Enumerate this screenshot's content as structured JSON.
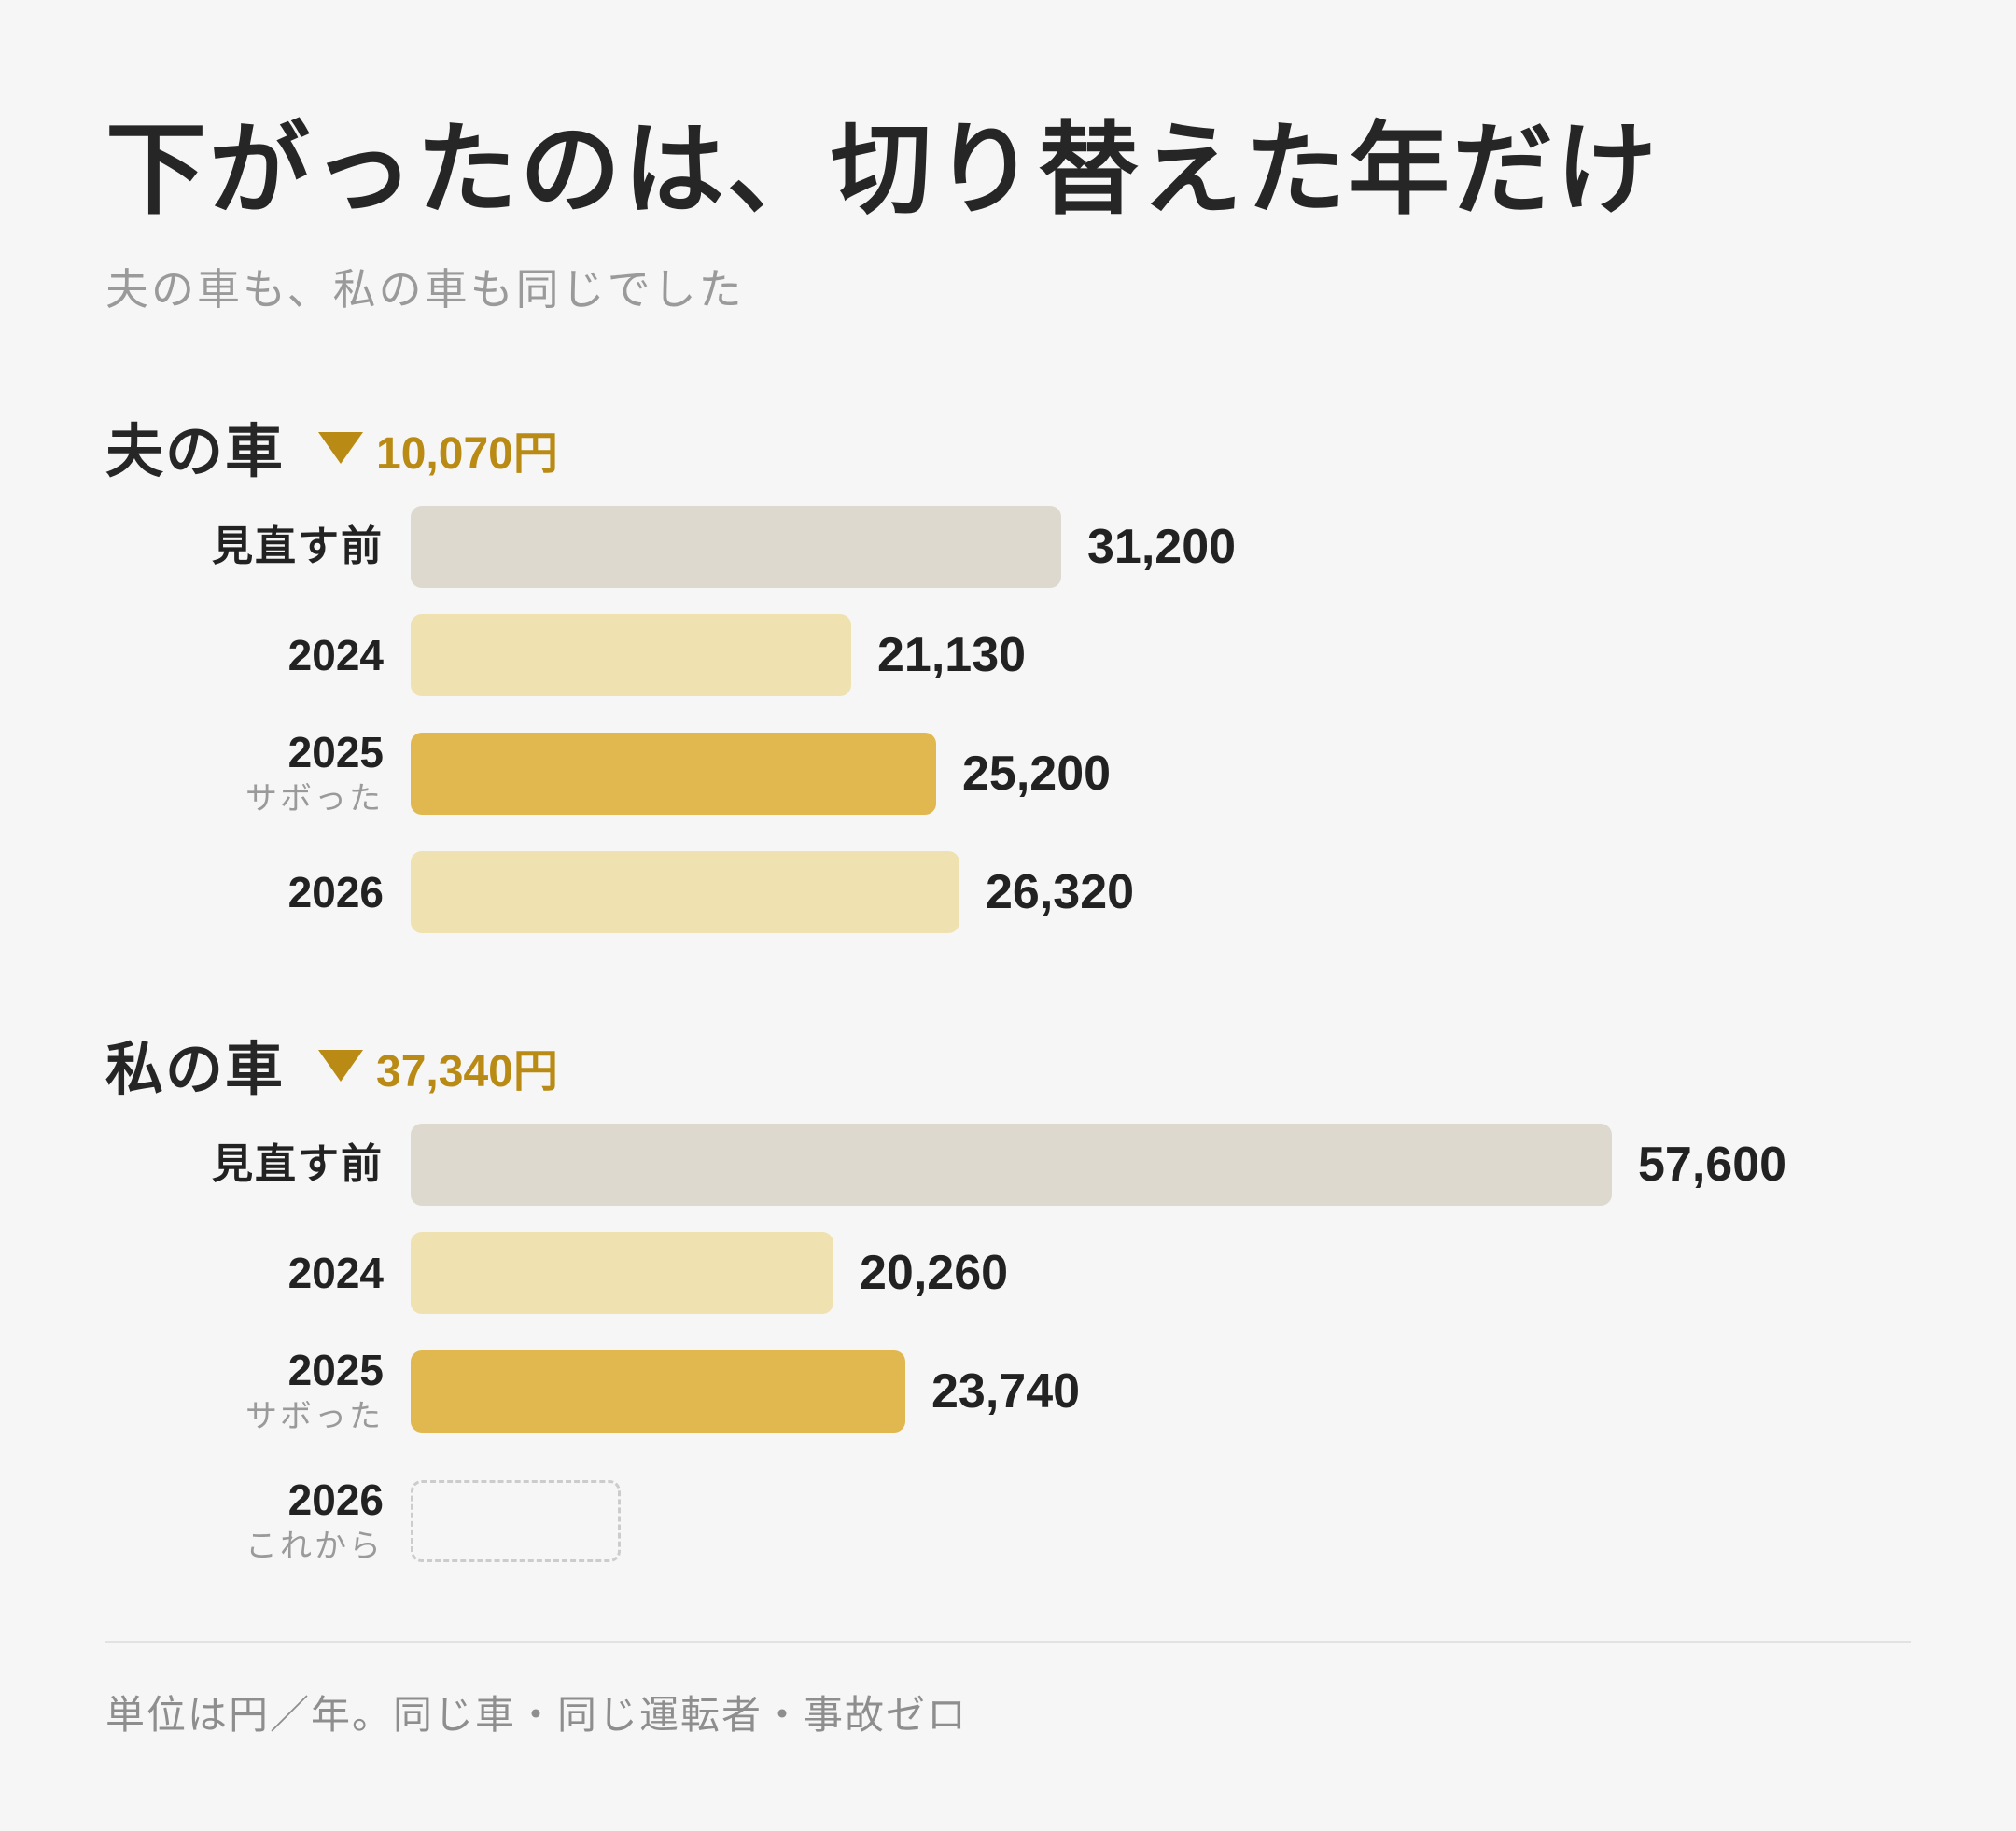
{
  "title": "下がったのは、切り替えた年だけ",
  "subtitle": "夫の車も、私の車も同じでした",
  "footnote": "単位は円／年。同じ車・同じ運転者・事故ゼロ",
  "colors": {
    "before": "#ddd9ce",
    "normal_year": "#efe1b0",
    "skipped_year": "#e0b84f",
    "accent": "#b98a14"
  },
  "chart_data": [
    {
      "type": "bar",
      "orientation": "horizontal",
      "title": "夫の車",
      "delta_label": "10,070円",
      "categories": [
        "見直す前",
        "2024",
        "2025",
        "2026"
      ],
      "category_notes": [
        "",
        "",
        "サボった",
        ""
      ],
      "values": [
        31200,
        21130,
        25200,
        26320
      ],
      "value_labels": [
        "31,200",
        "21,130",
        "25,200",
        "26,320"
      ],
      "kinds": [
        "before",
        "normal_year",
        "skipped_year",
        "normal_year"
      ],
      "unit": "円／年"
    },
    {
      "type": "bar",
      "orientation": "horizontal",
      "title": "私の車",
      "delta_label": "37,340円",
      "categories": [
        "見直す前",
        "2024",
        "2025",
        "2026"
      ],
      "category_notes": [
        "",
        "",
        "サボった",
        "これから"
      ],
      "values": [
        57600,
        20260,
        23740,
        null
      ],
      "value_labels": [
        "57,600",
        "20,260",
        "23,740",
        ""
      ],
      "kinds": [
        "before",
        "normal_year",
        "skipped_year",
        "placeholder"
      ],
      "unit": "円／年"
    }
  ]
}
